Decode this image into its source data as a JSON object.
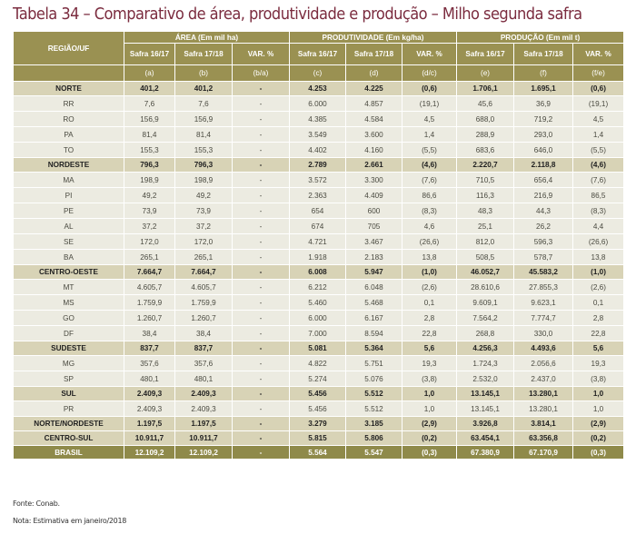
{
  "title": "Tabela 34 – Comparativo de área, produtividade e produção – Milho segunda safra",
  "header": {
    "region": "REGIÃO/UF",
    "groups": [
      "ÁREA (Em mil ha)",
      "PRODUTIVIDADE (Em kg/ha)",
      "PRODUÇÃO (Em mil t)"
    ],
    "subcols": [
      "Safra 16/17",
      "Safra 17/18",
      "VAR. %",
      "Safra 16/17",
      "Safra 17/18",
      "VAR. %",
      "Safra 16/17",
      "Safra 17/18",
      "VAR. %"
    ],
    "letters": [
      "(a)",
      "(b)",
      "(b/a)",
      "(c)",
      "(d)",
      "(d/c)",
      "(e)",
      "(f)",
      "(f/e)"
    ]
  },
  "rows": [
    {
      "type": "t",
      "cells": [
        "NORTE",
        "401,2",
        "401,2",
        "-",
        "4.253",
        "4.225",
        "(0,6)",
        "1.706,1",
        "1.695,1",
        "(0,6)"
      ]
    },
    {
      "type": "r",
      "cells": [
        "RR",
        "7,6",
        "7,6",
        "-",
        "6.000",
        "4.857",
        "(19,1)",
        "45,6",
        "36,9",
        "(19,1)"
      ]
    },
    {
      "type": "r",
      "cells": [
        "RO",
        "156,9",
        "156,9",
        "-",
        "4.385",
        "4.584",
        "4,5",
        "688,0",
        "719,2",
        "4,5"
      ]
    },
    {
      "type": "r",
      "cells": [
        "PA",
        "81,4",
        "81,4",
        "-",
        "3.549",
        "3.600",
        "1,4",
        "288,9",
        "293,0",
        "1,4"
      ]
    },
    {
      "type": "r",
      "cells": [
        "TO",
        "155,3",
        "155,3",
        "-",
        "4.402",
        "4.160",
        "(5,5)",
        "683,6",
        "646,0",
        "(5,5)"
      ]
    },
    {
      "type": "t",
      "cells": [
        "NORDESTE",
        "796,3",
        "796,3",
        "-",
        "2.789",
        "2.661",
        "(4,6)",
        "2.220,7",
        "2.118,8",
        "(4,6)"
      ]
    },
    {
      "type": "r",
      "cells": [
        "MA",
        "198,9",
        "198,9",
        "-",
        "3.572",
        "3.300",
        "(7,6)",
        "710,5",
        "656,4",
        "(7,6)"
      ]
    },
    {
      "type": "r",
      "cells": [
        "PI",
        "49,2",
        "49,2",
        "-",
        "2.363",
        "4.409",
        "86,6",
        "116,3",
        "216,9",
        "86,5"
      ]
    },
    {
      "type": "r",
      "cells": [
        "PE",
        "73,9",
        "73,9",
        "-",
        "654",
        "600",
        "(8,3)",
        "48,3",
        "44,3",
        "(8,3)"
      ]
    },
    {
      "type": "r",
      "cells": [
        "AL",
        "37,2",
        "37,2",
        "-",
        "674",
        "705",
        "4,6",
        "25,1",
        "26,2",
        "4,4"
      ]
    },
    {
      "type": "r",
      "cells": [
        "SE",
        "172,0",
        "172,0",
        "-",
        "4.721",
        "3.467",
        "(26,6)",
        "812,0",
        "596,3",
        "(26,6)"
      ]
    },
    {
      "type": "r",
      "cells": [
        "BA",
        "265,1",
        "265,1",
        "-",
        "1.918",
        "2.183",
        "13,8",
        "508,5",
        "578,7",
        "13,8"
      ]
    },
    {
      "type": "t",
      "cells": [
        "CENTRO-OESTE",
        "7.664,7",
        "7.664,7",
        "-",
        "6.008",
        "5.947",
        "(1,0)",
        "46.052,7",
        "45.583,2",
        "(1,0)"
      ]
    },
    {
      "type": "r",
      "cells": [
        "MT",
        "4.605,7",
        "4.605,7",
        "-",
        "6.212",
        "6.048",
        "(2,6)",
        "28.610,6",
        "27.855,3",
        "(2,6)"
      ]
    },
    {
      "type": "r",
      "cells": [
        "MS",
        "1.759,9",
        "1.759,9",
        "-",
        "5.460",
        "5.468",
        "0,1",
        "9.609,1",
        "9.623,1",
        "0,1"
      ]
    },
    {
      "type": "r",
      "cells": [
        "GO",
        "1.260,7",
        "1.260,7",
        "-",
        "6.000",
        "6.167",
        "2,8",
        "7.564,2",
        "7.774,7",
        "2,8"
      ]
    },
    {
      "type": "r",
      "cells": [
        "DF",
        "38,4",
        "38,4",
        "-",
        "7.000",
        "8.594",
        "22,8",
        "268,8",
        "330,0",
        "22,8"
      ]
    },
    {
      "type": "t",
      "cells": [
        "SUDESTE",
        "837,7",
        "837,7",
        "-",
        "5.081",
        "5.364",
        "5,6",
        "4.256,3",
        "4.493,6",
        "5,6"
      ]
    },
    {
      "type": "r",
      "cells": [
        "MG",
        "357,6",
        "357,6",
        "-",
        "4.822",
        "5.751",
        "19,3",
        "1.724,3",
        "2.056,6",
        "19,3"
      ]
    },
    {
      "type": "r",
      "cells": [
        "SP",
        "480,1",
        "480,1",
        "-",
        "5.274",
        "5.076",
        "(3,8)",
        "2.532,0",
        "2.437,0",
        "(3,8)"
      ]
    },
    {
      "type": "t",
      "cells": [
        "SUL",
        "2.409,3",
        "2.409,3",
        "-",
        "5.456",
        "5.512",
        "1,0",
        "13.145,1",
        "13.280,1",
        "1,0"
      ]
    },
    {
      "type": "r",
      "cells": [
        "PR",
        "2.409,3",
        "2.409,3",
        "-",
        "5.456",
        "5.512",
        "1,0",
        "13.145,1",
        "13.280,1",
        "1,0"
      ]
    },
    {
      "type": "t",
      "cells": [
        "NORTE/NORDESTE",
        "1.197,5",
        "1.197,5",
        "-",
        "3.279",
        "3.185",
        "(2,9)",
        "3.926,8",
        "3.814,1",
        "(2,9)"
      ]
    },
    {
      "type": "t",
      "cells": [
        "CENTRO-SUL",
        "10.911,7",
        "10.911,7",
        "-",
        "5.815",
        "5.806",
        "(0,2)",
        "63.454,1",
        "63.356,8",
        "(0,2)"
      ]
    },
    {
      "type": "b",
      "cells": [
        "BRASIL",
        "12.109,2",
        "12.109,2",
        "-",
        "5.564",
        "5.547",
        "(0,3)",
        "67.380,9",
        "67.170,9",
        "(0,3)"
      ]
    }
  ],
  "footer": {
    "source": "Fonte: Conab.",
    "note": "Nota: Estimativa em janeiro/2018"
  },
  "colors": {
    "title": "#7b2c3f",
    "header": "#9a9152",
    "subtotal": "#d8d3b6",
    "row": "#ecebe1",
    "total": "#8f8a4a"
  }
}
